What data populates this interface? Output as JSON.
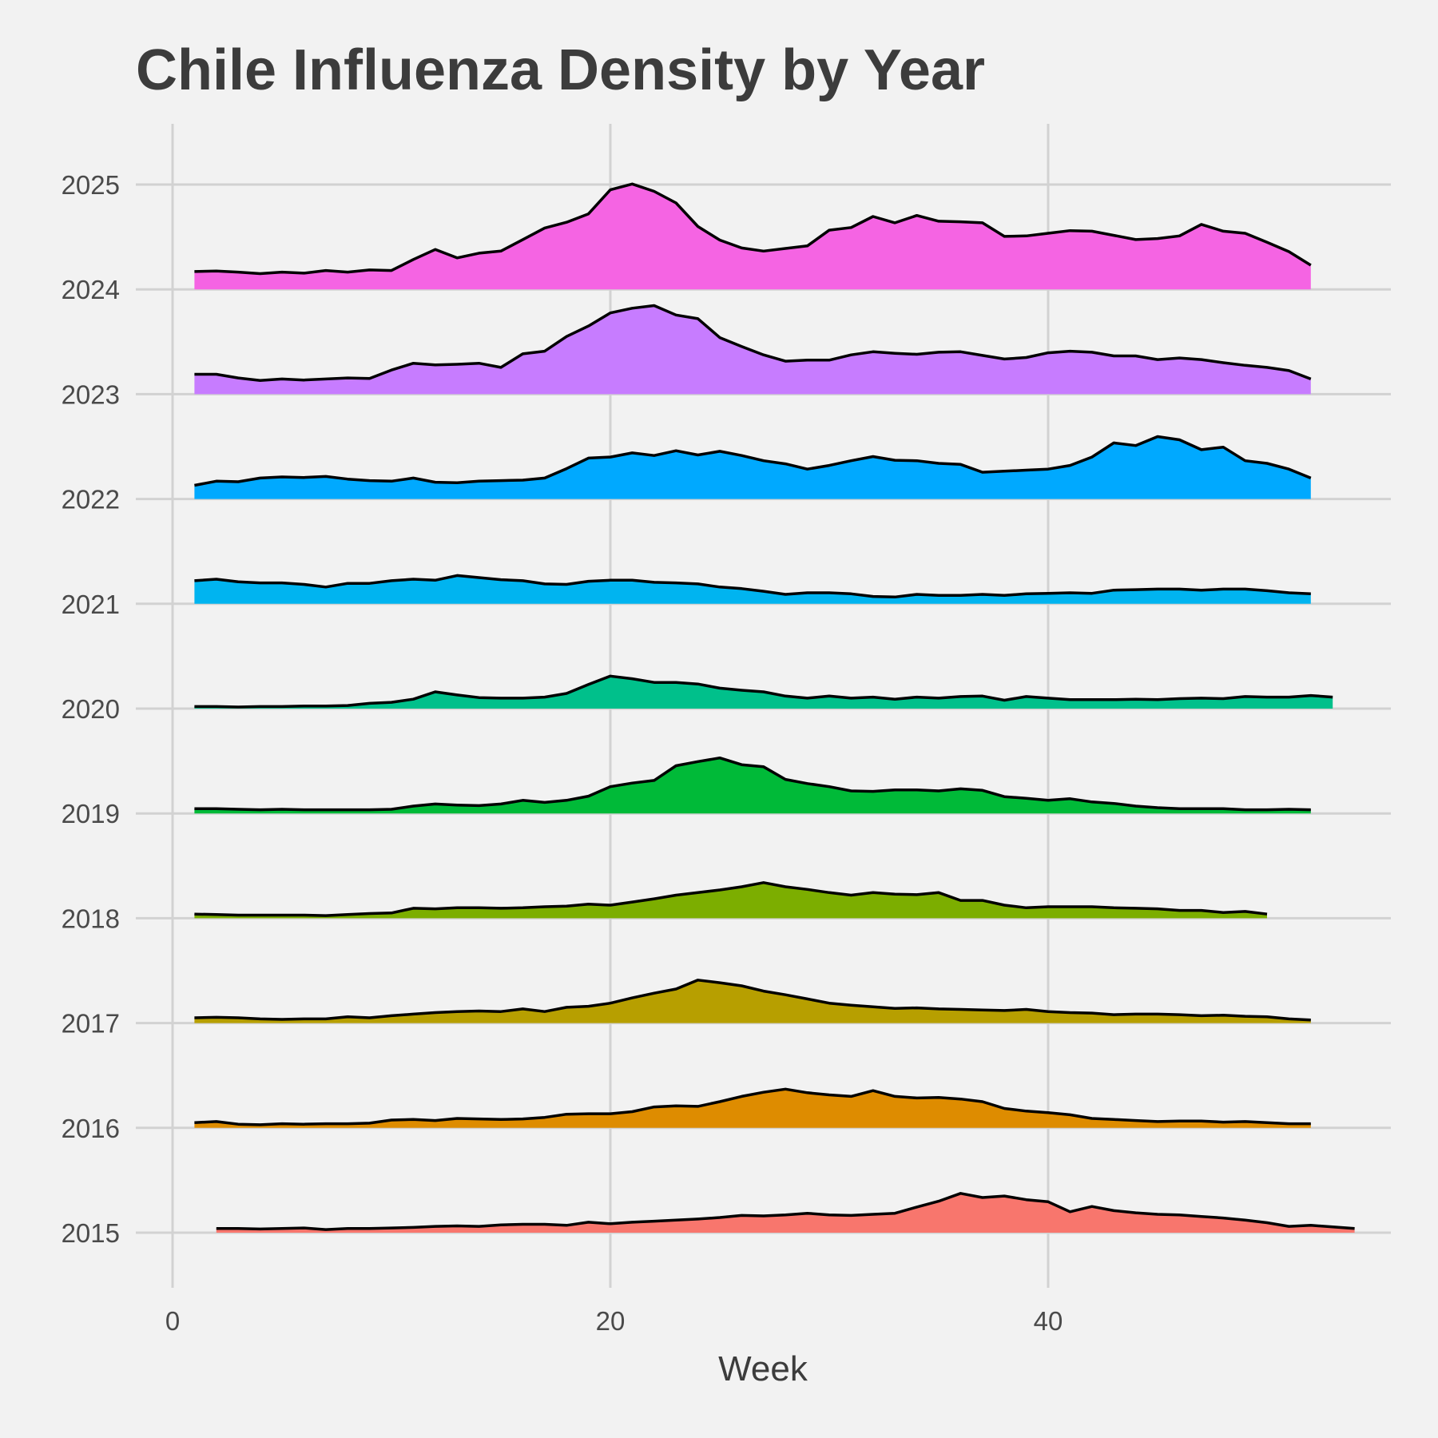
{
  "chart_data": {
    "type": "area",
    "title": "Chile Influenza Density by Year",
    "xlabel": "Week",
    "ylabel": "",
    "xlim": [
      0,
      55
    ],
    "ylim": [
      2014.5,
      2025.6
    ],
    "x_ticks": [
      0,
      20,
      40
    ],
    "y_ticks": [
      2015,
      2016,
      2017,
      2018,
      2019,
      2020,
      2021,
      2022,
      2023,
      2024,
      2025
    ],
    "grid": true,
    "legend": "none",
    "series": [
      {
        "year": "2015",
        "color": "#F8766D",
        "x_start": 2,
        "values": [
          0.04,
          0.04,
          0.035,
          0.04,
          0.045,
          0.03,
          0.04,
          0.04,
          0.045,
          0.05,
          0.06,
          0.065,
          0.06,
          0.075,
          0.08,
          0.08,
          0.07,
          0.1,
          0.085,
          0.1,
          0.11,
          0.12,
          0.13,
          0.145,
          0.165,
          0.16,
          0.17,
          0.185,
          0.17,
          0.165,
          0.175,
          0.185,
          0.245,
          0.3,
          0.375,
          0.335,
          0.35,
          0.315,
          0.295,
          0.2,
          0.25,
          0.21,
          0.19,
          0.175,
          0.17,
          0.155,
          0.14,
          0.12,
          0.095,
          0.06,
          0.07,
          0.055,
          0.04
        ]
      },
      {
        "year": "2016",
        "color": "#DE8C00",
        "x_start": 1,
        "values": [
          0.05,
          0.06,
          0.035,
          0.03,
          0.04,
          0.035,
          0.04,
          0.04,
          0.045,
          0.075,
          0.08,
          0.07,
          0.09,
          0.085,
          0.08,
          0.085,
          0.1,
          0.13,
          0.135,
          0.135,
          0.155,
          0.2,
          0.21,
          0.205,
          0.25,
          0.3,
          0.34,
          0.37,
          0.335,
          0.315,
          0.3,
          0.355,
          0.3,
          0.285,
          0.29,
          0.275,
          0.25,
          0.185,
          0.16,
          0.145,
          0.125,
          0.09,
          0.08,
          0.07,
          0.06,
          0.065,
          0.065,
          0.055,
          0.06,
          0.05,
          0.04,
          0.04
        ]
      },
      {
        "year": "2017",
        "color": "#B79F00",
        "x_start": 1,
        "values": [
          0.05,
          0.055,
          0.05,
          0.04,
          0.035,
          0.04,
          0.04,
          0.06,
          0.05,
          0.07,
          0.085,
          0.1,
          0.11,
          0.115,
          0.11,
          0.135,
          0.11,
          0.15,
          0.16,
          0.19,
          0.24,
          0.285,
          0.325,
          0.41,
          0.385,
          0.355,
          0.305,
          0.27,
          0.23,
          0.19,
          0.17,
          0.155,
          0.14,
          0.145,
          0.135,
          0.13,
          0.125,
          0.12,
          0.13,
          0.11,
          0.1,
          0.095,
          0.08,
          0.085,
          0.085,
          0.08,
          0.07,
          0.075,
          0.065,
          0.06,
          0.04,
          0.03
        ]
      },
      {
        "year": "2018",
        "color": "#7CAE00",
        "x_start": 1,
        "values": [
          0.04,
          0.035,
          0.03,
          0.03,
          0.03,
          0.03,
          0.025,
          0.035,
          0.045,
          0.05,
          0.095,
          0.09,
          0.1,
          0.1,
          0.095,
          0.1,
          0.11,
          0.115,
          0.135,
          0.125,
          0.155,
          0.185,
          0.22,
          0.245,
          0.27,
          0.3,
          0.34,
          0.3,
          0.275,
          0.245,
          0.22,
          0.245,
          0.23,
          0.225,
          0.245,
          0.17,
          0.17,
          0.125,
          0.1,
          0.11,
          0.11,
          0.11,
          0.1,
          0.095,
          0.09,
          0.075,
          0.075,
          0.055,
          0.065,
          0.04
        ]
      },
      {
        "year": "2019",
        "color": "#00BA38",
        "x_start": 1,
        "values": [
          0.045,
          0.045,
          0.04,
          0.035,
          0.04,
          0.035,
          0.035,
          0.035,
          0.035,
          0.04,
          0.07,
          0.09,
          0.08,
          0.075,
          0.09,
          0.125,
          0.105,
          0.125,
          0.165,
          0.255,
          0.29,
          0.315,
          0.455,
          0.495,
          0.53,
          0.465,
          0.445,
          0.325,
          0.285,
          0.255,
          0.215,
          0.21,
          0.225,
          0.225,
          0.215,
          0.235,
          0.22,
          0.16,
          0.145,
          0.125,
          0.14,
          0.11,
          0.095,
          0.07,
          0.055,
          0.045,
          0.045,
          0.045,
          0.035,
          0.035,
          0.04,
          0.035
        ]
      },
      {
        "year": "2020",
        "color": "#00C08B",
        "x_start": 1,
        "values": [
          0.02,
          0.02,
          0.015,
          0.02,
          0.02,
          0.025,
          0.025,
          0.03,
          0.05,
          0.06,
          0.09,
          0.16,
          0.13,
          0.105,
          0.1,
          0.1,
          0.11,
          0.145,
          0.23,
          0.31,
          0.285,
          0.25,
          0.25,
          0.235,
          0.195,
          0.175,
          0.16,
          0.12,
          0.1,
          0.12,
          0.1,
          0.11,
          0.09,
          0.11,
          0.1,
          0.115,
          0.12,
          0.08,
          0.115,
          0.1,
          0.085,
          0.085,
          0.085,
          0.09,
          0.085,
          0.095,
          0.1,
          0.095,
          0.115,
          0.11,
          0.11,
          0.125,
          0.11
        ]
      },
      {
        "year": "2021",
        "color": "#00B4F0",
        "x_start": 1,
        "values": [
          0.22,
          0.235,
          0.21,
          0.2,
          0.2,
          0.185,
          0.16,
          0.195,
          0.195,
          0.22,
          0.235,
          0.225,
          0.27,
          0.25,
          0.23,
          0.22,
          0.19,
          0.185,
          0.215,
          0.225,
          0.225,
          0.205,
          0.2,
          0.19,
          0.16,
          0.145,
          0.12,
          0.09,
          0.105,
          0.105,
          0.095,
          0.07,
          0.065,
          0.09,
          0.08,
          0.08,
          0.09,
          0.08,
          0.095,
          0.1,
          0.105,
          0.1,
          0.13,
          0.135,
          0.14,
          0.14,
          0.13,
          0.14,
          0.14,
          0.125,
          0.105,
          0.095
        ]
      },
      {
        "year": "2022",
        "color": "#00A9FF",
        "x_start": 1,
        "values": [
          0.13,
          0.17,
          0.165,
          0.2,
          0.21,
          0.205,
          0.215,
          0.19,
          0.175,
          0.17,
          0.2,
          0.16,
          0.155,
          0.17,
          0.175,
          0.18,
          0.2,
          0.29,
          0.39,
          0.4,
          0.44,
          0.415,
          0.46,
          0.42,
          0.455,
          0.415,
          0.365,
          0.335,
          0.285,
          0.32,
          0.365,
          0.405,
          0.37,
          0.365,
          0.34,
          0.33,
          0.255,
          0.265,
          0.275,
          0.285,
          0.32,
          0.4,
          0.535,
          0.51,
          0.595,
          0.565,
          0.47,
          0.495,
          0.365,
          0.34,
          0.285,
          0.2
        ]
      },
      {
        "year": "2023",
        "color": "#C77CFF",
        "x_start": 1,
        "values": [
          0.19,
          0.19,
          0.155,
          0.13,
          0.145,
          0.135,
          0.145,
          0.155,
          0.15,
          0.23,
          0.295,
          0.28,
          0.285,
          0.295,
          0.255,
          0.385,
          0.41,
          0.55,
          0.65,
          0.775,
          0.82,
          0.845,
          0.755,
          0.72,
          0.54,
          0.455,
          0.375,
          0.315,
          0.325,
          0.325,
          0.375,
          0.405,
          0.39,
          0.38,
          0.4,
          0.405,
          0.37,
          0.335,
          0.35,
          0.395,
          0.41,
          0.4,
          0.365,
          0.365,
          0.33,
          0.345,
          0.33,
          0.3,
          0.275,
          0.255,
          0.225,
          0.145
        ]
      },
      {
        "year": "2024",
        "color": "#F564E3",
        "x_start": 1,
        "values": [
          0.17,
          0.175,
          0.165,
          0.15,
          0.165,
          0.155,
          0.18,
          0.165,
          0.185,
          0.18,
          0.285,
          0.38,
          0.3,
          0.345,
          0.365,
          0.475,
          0.585,
          0.64,
          0.72,
          0.95,
          1.005,
          0.935,
          0.825,
          0.6,
          0.47,
          0.395,
          0.365,
          0.39,
          0.415,
          0.565,
          0.59,
          0.695,
          0.635,
          0.705,
          0.65,
          0.645,
          0.635,
          0.505,
          0.51,
          0.535,
          0.56,
          0.555,
          0.515,
          0.475,
          0.485,
          0.51,
          0.62,
          0.555,
          0.535,
          0.45,
          0.36,
          0.23
        ]
      }
    ]
  }
}
